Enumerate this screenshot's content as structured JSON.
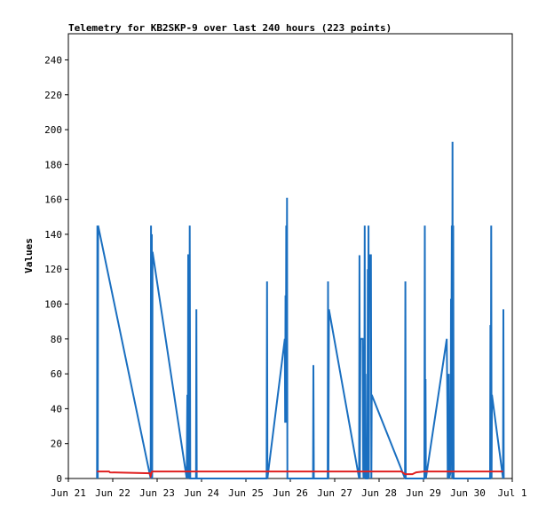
{
  "chart_data": {
    "type": "line",
    "title": "Telemetry for KB2SKP-9 over last 240 hours (223 points)",
    "ylabel": "Values",
    "xlabel": "",
    "xlim": [
      0,
      240
    ],
    "ylim": [
      0,
      255
    ],
    "yticks": [
      0,
      20,
      40,
      60,
      80,
      100,
      120,
      140,
      160,
      180,
      200,
      220,
      240
    ],
    "xticks": [
      {
        "h": 0,
        "label": "Jun 21"
      },
      {
        "h": 24,
        "label": "Jun 22"
      },
      {
        "h": 48,
        "label": "Jun 23"
      },
      {
        "h": 72,
        "label": "Jun 24"
      },
      {
        "h": 96,
        "label": "Jun 25"
      },
      {
        "h": 120,
        "label": "Jun 26"
      },
      {
        "h": 144,
        "label": "Jun 27"
      },
      {
        "h": 168,
        "label": "Jun 28"
      },
      {
        "h": 192,
        "label": "Jun 29"
      },
      {
        "h": 216,
        "label": "Jun 30"
      },
      {
        "h": 240,
        "label": "Jul 1"
      }
    ],
    "series": [
      {
        "color": "#1a6fc0",
        "points": [
          [
            15.5,
            0
          ],
          [
            15.7,
            145
          ],
          [
            15.9,
            0
          ],
          [
            16.1,
            145
          ],
          [
            44.5,
            0
          ],
          [
            44.7,
            145
          ],
          [
            44.9,
            0
          ],
          [
            45.1,
            140
          ],
          [
            45.3,
            0
          ],
          [
            45.5,
            130
          ],
          [
            64,
            0
          ],
          [
            64.3,
            48
          ],
          [
            64.6,
            0
          ],
          [
            64.8,
            128
          ],
          [
            65.1,
            128
          ],
          [
            65.4,
            0
          ],
          [
            65.6,
            145
          ],
          [
            65.9,
            0
          ],
          [
            69,
            0
          ],
          [
            69.2,
            97
          ],
          [
            69.4,
            0
          ],
          [
            107.2,
            0
          ],
          [
            107.4,
            113
          ],
          [
            107.6,
            0
          ],
          [
            117,
            80
          ],
          [
            117.2,
            32
          ],
          [
            117.4,
            105
          ],
          [
            117.6,
            32
          ],
          [
            117.8,
            145
          ],
          [
            118,
            32
          ],
          [
            118.2,
            161
          ],
          [
            118.4,
            0
          ],
          [
            132.3,
            0
          ],
          [
            132.5,
            65
          ],
          [
            132.7,
            0
          ],
          [
            140.2,
            0
          ],
          [
            140.4,
            113
          ],
          [
            140.6,
            0
          ],
          [
            140.9,
            97
          ],
          [
            157.2,
            0
          ],
          [
            157.4,
            128
          ],
          [
            157.6,
            0
          ],
          [
            157.9,
            80
          ],
          [
            159.1,
            80
          ],
          [
            159.4,
            5
          ],
          [
            159.6,
            0
          ],
          [
            159.8,
            70
          ],
          [
            160,
            8
          ],
          [
            160.2,
            145
          ],
          [
            160.4,
            0
          ],
          [
            160.6,
            60
          ],
          [
            160.9,
            0
          ],
          [
            161.7,
            0
          ],
          [
            161.9,
            120
          ],
          [
            162.1,
            45
          ],
          [
            162.3,
            145
          ],
          [
            162.5,
            0
          ],
          [
            162.7,
            128
          ],
          [
            163.6,
            128
          ],
          [
            163.8,
            0
          ],
          [
            164,
            48
          ],
          [
            182,
            0
          ],
          [
            182.2,
            113
          ],
          [
            182.4,
            0
          ],
          [
            192.5,
            0
          ],
          [
            192.7,
            145
          ],
          [
            192.9,
            0
          ],
          [
            193.1,
            57
          ],
          [
            193.3,
            0
          ],
          [
            204.6,
            80
          ],
          [
            204.9,
            43
          ],
          [
            205.1,
            0
          ],
          [
            205.3,
            48
          ],
          [
            205.5,
            0
          ],
          [
            205.7,
            60
          ],
          [
            205.9,
            0
          ],
          [
            206.5,
            3
          ],
          [
            206.7,
            30
          ],
          [
            206.9,
            103
          ],
          [
            207.1,
            80
          ],
          [
            207.3,
            145
          ],
          [
            207.5,
            0
          ],
          [
            207.7,
            193
          ],
          [
            207.9,
            0
          ],
          [
            208.1,
            145
          ],
          [
            208.3,
            0
          ],
          [
            228,
            0
          ],
          [
            228.2,
            88
          ],
          [
            228.4,
            0
          ],
          [
            228.6,
            145
          ],
          [
            228.8,
            0
          ],
          [
            229,
            48
          ],
          [
            235,
            0
          ],
          [
            235.2,
            97
          ],
          [
            235.4,
            0
          ]
        ]
      },
      {
        "color": "#e02020",
        "points": [
          [
            15.5,
            4
          ],
          [
            22,
            4
          ],
          [
            22.5,
            3.5
          ],
          [
            44,
            3
          ],
          [
            44.5,
            1.5
          ],
          [
            45.2,
            4
          ],
          [
            110,
            4
          ],
          [
            160,
            4
          ],
          [
            180,
            4
          ],
          [
            182,
            2.5
          ],
          [
            186,
            2.5
          ],
          [
            188,
            3.5
          ],
          [
            192,
            4
          ],
          [
            235,
            4
          ]
        ]
      }
    ]
  }
}
